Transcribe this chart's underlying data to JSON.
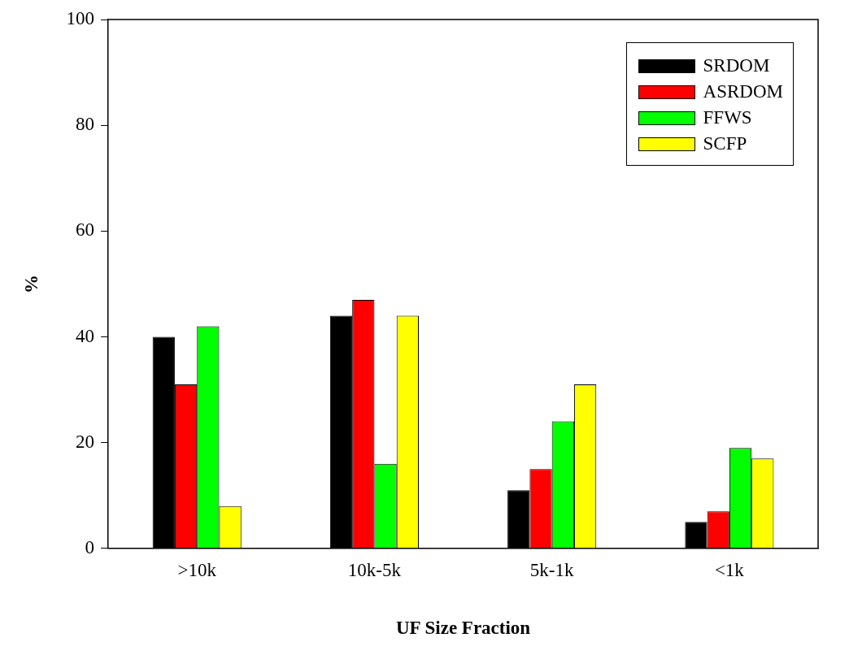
{
  "chart_data": {
    "type": "bar",
    "xlabel": "UF Size Fraction",
    "ylabel": "%",
    "categories": [
      ">10k",
      "10k-5k",
      "5k-1k",
      "<1k"
    ],
    "series": [
      {
        "name": "SRDOM",
        "color": "#000000",
        "values": [
          40,
          44,
          11,
          5
        ]
      },
      {
        "name": "ASRDOM",
        "color": "#ff0000",
        "values": [
          31,
          47,
          15,
          7
        ]
      },
      {
        "name": "FFWS",
        "color": "#00ff00",
        "values": [
          42,
          16,
          24,
          19
        ]
      },
      {
        "name": "SCFP",
        "color": "#ffff00",
        "values": [
          8,
          44,
          31,
          17
        ]
      }
    ],
    "ylim": [
      0,
      100
    ],
    "yticks": [
      0,
      20,
      40,
      60,
      80,
      100
    ],
    "grid": false,
    "legend": "top right"
  }
}
